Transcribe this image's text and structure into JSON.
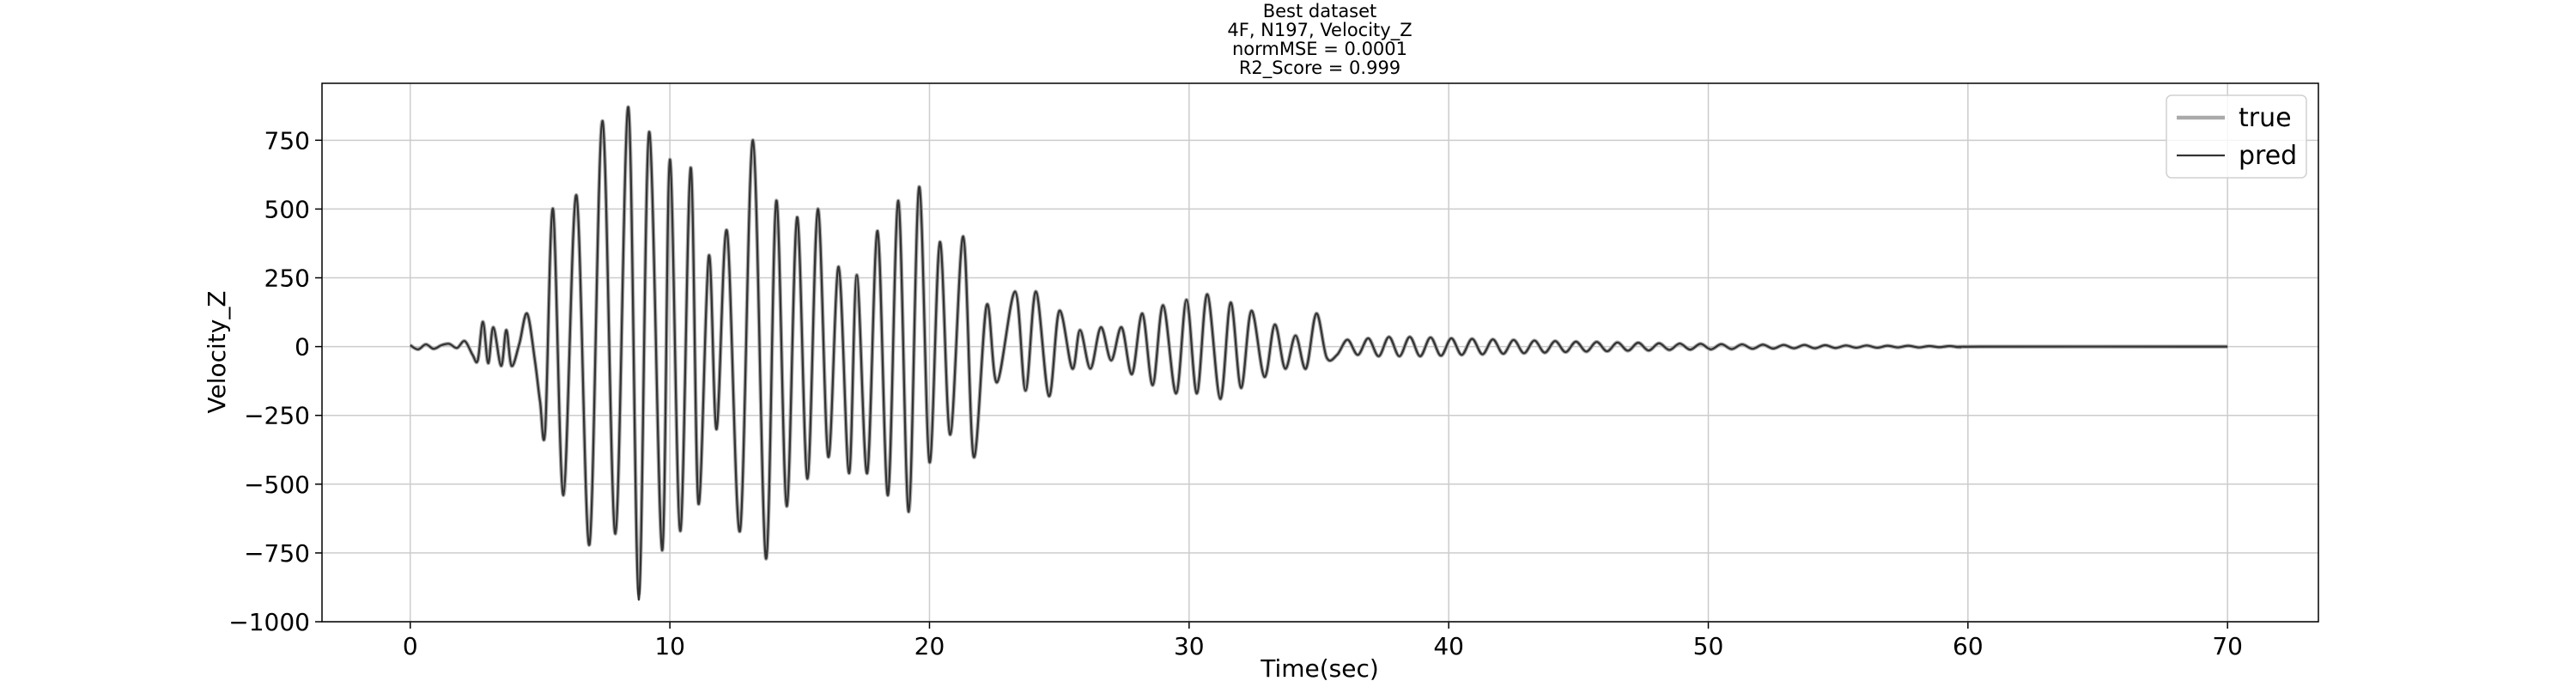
{
  "chart_data": {
    "type": "line",
    "title": [
      "Best dataset",
      "4F, N197, Velocity_Z",
      "normMSE = 0.0001",
      "R2_Score = 0.999"
    ],
    "xlabel": "Time(sec)",
    "ylabel": "Velocity_Z",
    "x": [
      0,
      0.3,
      0.6,
      0.9,
      1.2,
      1.5,
      1.8,
      2.1,
      2.4,
      2.6,
      2.8,
      3.0,
      3.2,
      3.5,
      3.7,
      3.9,
      4.2,
      4.5,
      4.8,
      5.0,
      5.2,
      5.5,
      5.9,
      6.4,
      6.9,
      7.4,
      7.9,
      8.4,
      8.8,
      9.2,
      9.7,
      10.0,
      10.4,
      10.8,
      11.1,
      11.5,
      11.8,
      12.2,
      12.7,
      13.2,
      13.7,
      14.1,
      14.5,
      14.9,
      15.3,
      15.7,
      16.1,
      16.5,
      16.9,
      17.2,
      17.6,
      18.0,
      18.4,
      18.8,
      19.2,
      19.6,
      20.0,
      20.4,
      20.8,
      21.3,
      21.7,
      22.2,
      22.6,
      23.3,
      23.7,
      24.1,
      24.6,
      25.0,
      25.5,
      25.8,
      26.2,
      26.6,
      27.0,
      27.4,
      27.8,
      28.2,
      28.6,
      29.0,
      29.5,
      29.9,
      30.3,
      30.7,
      31.2,
      31.6,
      32.0,
      32.4,
      32.9,
      33.3,
      33.7,
      34.1,
      34.5,
      34.9,
      35.3,
      35.7,
      36.1,
      36.5,
      36.9,
      37.3,
      37.7,
      38.1,
      38.5,
      38.9,
      39.3,
      39.7,
      40.1,
      40.5,
      40.9,
      41.3,
      41.7,
      42.1,
      42.5,
      42.9,
      43.3,
      43.7,
      44.1,
      44.5,
      44.9,
      45.3,
      45.7,
      46.1,
      46.5,
      46.9,
      47.3,
      47.7,
      48.1,
      48.5,
      48.9,
      49.3,
      49.7,
      50.1,
      50.5,
      50.9,
      51.3,
      51.7,
      52.1,
      52.5,
      52.9,
      53.3,
      53.7,
      54.1,
      54.5,
      54.9,
      55.3,
      55.7,
      56.1,
      56.5,
      56.9,
      57.3,
      57.7,
      58.1,
      58.5,
      58.9,
      59.3,
      59.7,
      60.5,
      70
    ],
    "series": [
      {
        "name": "true",
        "color": "#aaaaaa",
        "values": [
          5,
          -10,
          8,
          -8,
          5,
          10,
          -5,
          20,
          -30,
          -50,
          90,
          -60,
          70,
          -70,
          60,
          -70,
          10,
          120,
          -50,
          -200,
          -300,
          500,
          -540,
          550,
          -720,
          820,
          -680,
          870,
          -900,
          780,
          -740,
          680,
          -670,
          650,
          -570,
          330,
          -300,
          420,
          -670,
          750,
          -770,
          530,
          -580,
          470,
          -480,
          500,
          -400,
          290,
          -460,
          260,
          -460,
          420,
          -540,
          530,
          -600,
          580,
          -420,
          380,
          -320,
          400,
          -400,
          150,
          -130,
          200,
          -160,
          200,
          -180,
          130,
          -80,
          60,
          -80,
          70,
          -50,
          70,
          -100,
          120,
          -140,
          150,
          -170,
          170,
          -170,
          190,
          -190,
          160,
          -150,
          130,
          -110,
          80,
          -80,
          40,
          -80,
          120,
          -40,
          -30,
          25,
          -30,
          30,
          -35,
          35,
          -35,
          35,
          -35,
          33,
          -33,
          30,
          -30,
          28,
          -28,
          26,
          -26,
          24,
          -24,
          22,
          -22,
          20,
          -20,
          18,
          -18,
          17,
          -17,
          15,
          -15,
          14,
          -14,
          12,
          -12,
          11,
          -11,
          10,
          -10,
          9,
          -9,
          8,
          -8,
          7,
          -7,
          6,
          -6,
          6,
          -6,
          5,
          -5,
          4,
          -4,
          4,
          -4,
          3,
          -3,
          3,
          -3,
          2,
          -2,
          2,
          -2,
          0,
          0
        ]
      },
      {
        "name": "pred",
        "color": "#333333",
        "values": [
          5,
          -10,
          8,
          -8,
          5,
          10,
          -5,
          20,
          -30,
          -50,
          90,
          -60,
          70,
          -70,
          60,
          -70,
          10,
          120,
          -50,
          -200,
          -300,
          500,
          -540,
          550,
          -720,
          820,
          -680,
          870,
          -920,
          780,
          -740,
          680,
          -670,
          650,
          -570,
          330,
          -300,
          420,
          -670,
          750,
          -770,
          530,
          -580,
          470,
          -480,
          500,
          -400,
          290,
          -460,
          260,
          -460,
          420,
          -540,
          530,
          -600,
          580,
          -420,
          380,
          -320,
          400,
          -400,
          150,
          -130,
          200,
          -160,
          200,
          -180,
          130,
          -80,
          60,
          -80,
          70,
          -50,
          70,
          -100,
          120,
          -140,
          150,
          -170,
          170,
          -170,
          190,
          -190,
          160,
          -150,
          130,
          -110,
          80,
          -80,
          40,
          -80,
          120,
          -40,
          -30,
          25,
          -30,
          30,
          -35,
          35,
          -35,
          35,
          -35,
          33,
          -33,
          30,
          -30,
          28,
          -28,
          26,
          -26,
          24,
          -24,
          22,
          -22,
          20,
          -20,
          18,
          -18,
          17,
          -17,
          15,
          -15,
          14,
          -14,
          12,
          -12,
          11,
          -11,
          10,
          -10,
          9,
          -9,
          8,
          -8,
          7,
          -7,
          6,
          -6,
          6,
          -6,
          5,
          -5,
          4,
          -4,
          4,
          -4,
          3,
          -3,
          3,
          -3,
          2,
          -2,
          2,
          -2,
          0,
          0
        ]
      }
    ],
    "xlim": [
      -3.4,
      73.5
    ],
    "ylim": [
      -1000,
      957
    ],
    "xticks": [
      0,
      10,
      20,
      30,
      40,
      50,
      60,
      70
    ],
    "yticks": [
      {
        "value": -1000,
        "label": "−1000"
      },
      {
        "value": -750,
        "label": "−750"
      },
      {
        "value": -500,
        "label": "−500"
      },
      {
        "value": -250,
        "label": "−250"
      },
      0,
      250,
      500,
      750
    ],
    "grid": true,
    "legend": "upper right"
  }
}
